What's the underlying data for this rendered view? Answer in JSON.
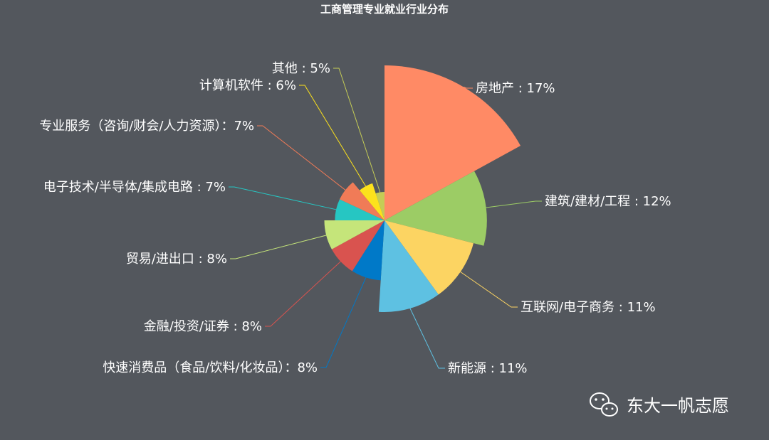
{
  "chart_data": {
    "type": "pie",
    "variant": "rose",
    "title": "工商管理专业就业行业分布",
    "slices": [
      {
        "name": "房地产",
        "value": 17,
        "label": "房地产 : 17%",
        "color": "#ff8a65"
      },
      {
        "name": "建筑/建材/工程",
        "value": 12,
        "label": "建筑/建材/工程 : 12%",
        "color": "#9ccc65"
      },
      {
        "name": "互联网/电子商务",
        "value": 11,
        "label": "互联网/电子商务 : 11%",
        "color": "#fcd462"
      },
      {
        "name": "新能源",
        "value": 11,
        "label": "新能源 : 11%",
        "color": "#5ec1e2"
      },
      {
        "name": "快速消费品（食品/饮料/化妆品）",
        "value": 8,
        "label": "快速消费品（食品/饮料/化妆品）：8%",
        "color": "#0079c8"
      },
      {
        "name": "金融/投资/证券",
        "value": 8,
        "label": "金融/投资/证券 : 8%",
        "color": "#d9534f"
      },
      {
        "name": "贸易/进出口",
        "value": 8,
        "label": "贸易/进出口 : 8%",
        "color": "#c5e57a"
      },
      {
        "name": "电子技术/半导体/集成电路",
        "value": 7,
        "label": "电子技术/半导体/集成电路 : 7%",
        "color": "#26c6c2"
      },
      {
        "name": "专业服务（咨询/财会/人力资源）",
        "value": 7,
        "label": "专业服务（咨询/财会/人力资源）：7%",
        "color": "#f07b57"
      },
      {
        "name": "计算机软件",
        "value": 6,
        "label": "计算机软件 : 6%",
        "color": "#fce21c"
      },
      {
        "name": "其他",
        "value": 5,
        "label": "其他 : 5%",
        "color": "#c4cc56"
      }
    ]
  },
  "watermark": {
    "text": "东大一帆志愿",
    "icon": "wechat-icon"
  },
  "colors": {
    "background": "#53575d"
  }
}
